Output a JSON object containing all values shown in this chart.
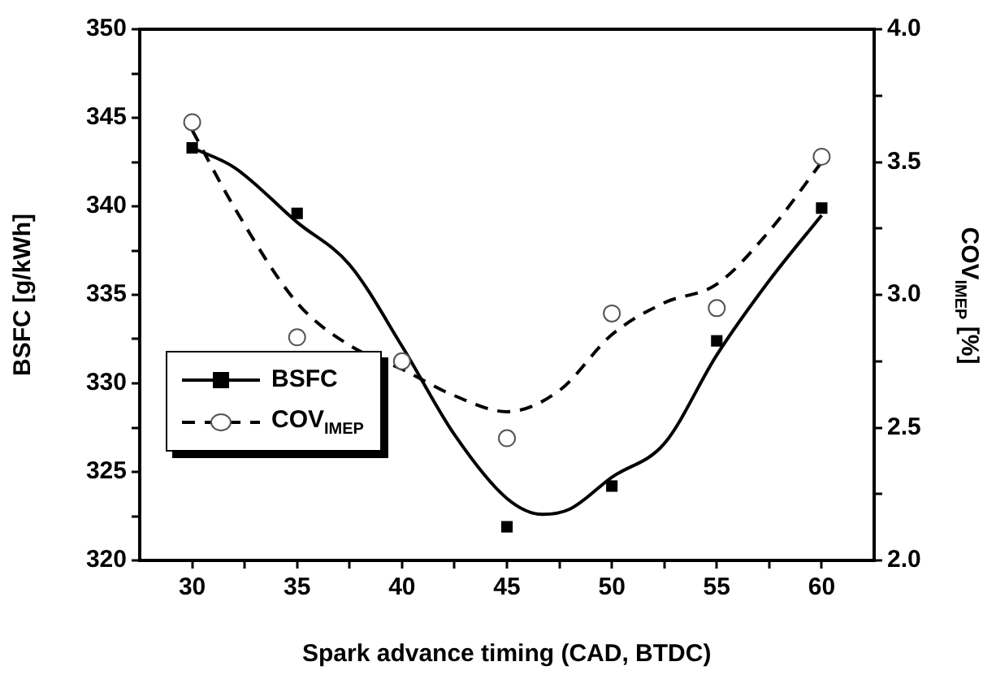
{
  "chart_data": {
    "type": "scatter",
    "xlabel": "Spark advance timing (CAD, BTDC)",
    "ylabel": "BSFC [g/kWh]",
    "y2label": "COV$_{IMEP}$ [%]",
    "x": [
      30,
      35,
      40,
      45,
      50,
      55,
      60
    ],
    "series": [
      {
        "name": "BSFC",
        "marker": "square",
        "color": "#000000",
        "values": [
          343.3,
          339.6,
          null,
          321.9,
          324.2,
          332.4,
          339.9
        ]
      },
      {
        "name": "COV$_{IMEP}$",
        "marker": "circle",
        "color": "#555555",
        "axis": "y2",
        "values": [
          3.65,
          2.84,
          2.75,
          2.46,
          2.93,
          2.95,
          3.52
        ]
      },
      {
        "type": "line",
        "line_style": "solid",
        "color": "#000000",
        "x": [
          30,
          32,
          35,
          37.5,
          40,
          42.5,
          45,
          46.7,
          48,
          50,
          52.5,
          55,
          57.5,
          60
        ],
        "values": [
          343.3,
          342.2,
          339.1,
          336.7,
          332.1,
          327.1,
          323.5,
          322.6,
          322.9,
          324.7,
          326.6,
          331.6,
          335.8,
          339.5
        ]
      },
      {
        "type": "line",
        "line_style": "dashed",
        "color": "#000000",
        "axis": "y2",
        "x": [
          30,
          32,
          35,
          37.5,
          40,
          42.5,
          45,
          47.5,
          50,
          52.5,
          55,
          57.5,
          60
        ],
        "values": [
          3.62,
          3.33,
          2.97,
          2.81,
          2.72,
          2.62,
          2.56,
          2.64,
          2.85,
          2.97,
          3.04,
          3.24,
          3.5
        ]
      }
    ],
    "xlim": [
      27.5,
      62.5
    ],
    "xticks": [
      30,
      {
        "value": 32.5,
        "label": null
      },
      35,
      {
        "value": 37.5,
        "label": null
      },
      40,
      {
        "value": 42.5,
        "label": null
      },
      45,
      {
        "value": 47.5,
        "label": null
      },
      50,
      {
        "value": 52.5,
        "label": null
      },
      55,
      {
        "value": 57.5,
        "label": null
      },
      60
    ],
    "ylim": [
      320,
      350
    ],
    "yticks": [
      320,
      {
        "value": 322.5,
        "label": null
      },
      325,
      {
        "value": 327.5,
        "label": null
      },
      330,
      {
        "value": 332.5,
        "label": null
      },
      335,
      {
        "value": 337.5,
        "label": null
      },
      340,
      {
        "value": 342.5,
        "label": null
      },
      345,
      {
        "value": 347.5,
        "label": null
      },
      350
    ],
    "y2lim": [
      2,
      4
    ],
    "y2ticks": [
      {
        "value": 2,
        "label": "2.0"
      },
      {
        "value": 2.25,
        "label": null
      },
      {
        "value": 2.5,
        "label": "2.5"
      },
      {
        "value": 2.75,
        "label": null
      },
      {
        "value": 3,
        "label": "3.0"
      },
      {
        "value": 3.25,
        "label": null
      },
      {
        "value": 3.5,
        "label": "3.5"
      },
      {
        "value": 3.75,
        "label": null
      },
      {
        "value": 4,
        "label": "4.0"
      }
    ],
    "grid": false,
    "legend": "left"
  }
}
